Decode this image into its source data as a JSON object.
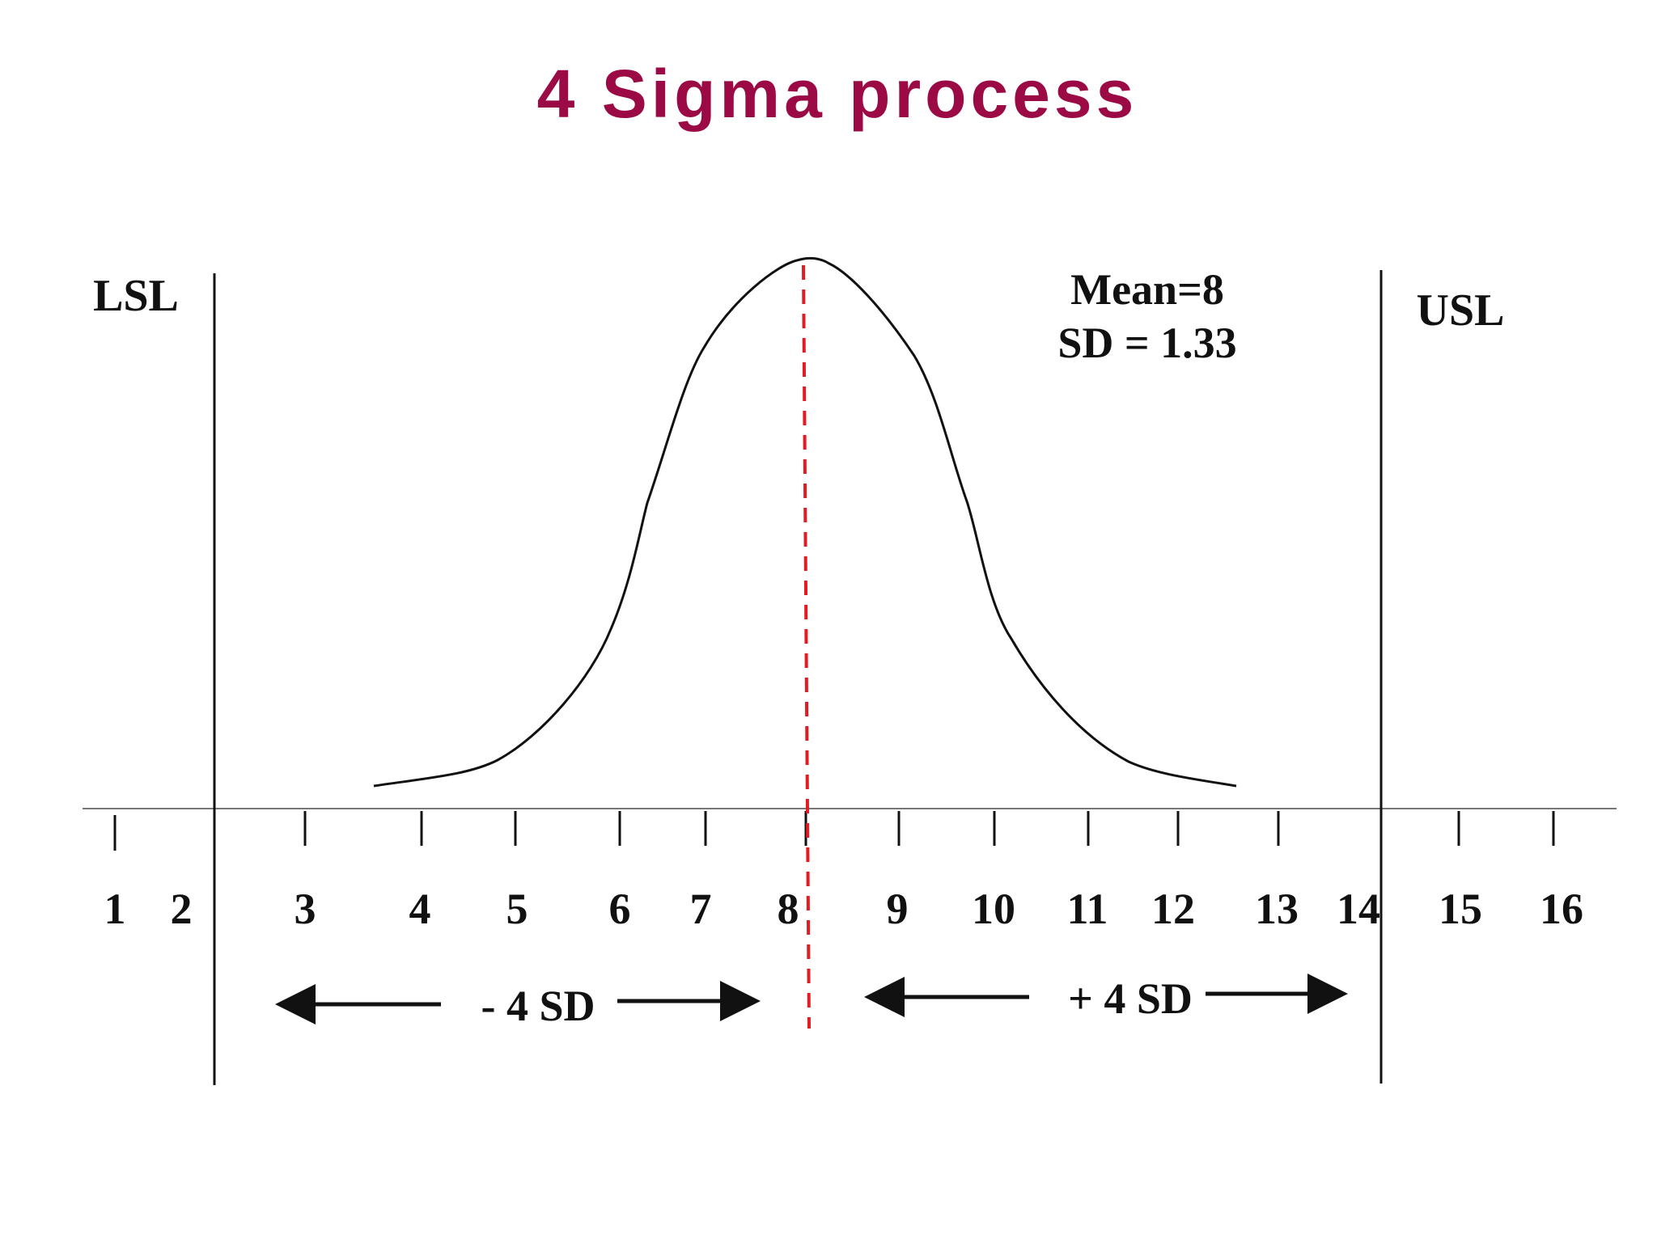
{
  "title": "4 Sigma process",
  "limits": {
    "lower": "LSL",
    "upper": "USL"
  },
  "stats": {
    "mean": "Mean=8",
    "sd": "SD = 1.33"
  },
  "spans": {
    "minus": "- 4 SD",
    "plus": "+ 4 SD"
  },
  "axis_ticks": [
    "1",
    "2",
    "3",
    "4",
    "5",
    "6",
    "7",
    "8",
    "9",
    "10",
    "11",
    "12",
    "13",
    "14",
    "15",
    "16"
  ],
  "colors": {
    "title": "#9b0a45",
    "mean_line": "#e31b23",
    "ink": "#111111"
  }
}
